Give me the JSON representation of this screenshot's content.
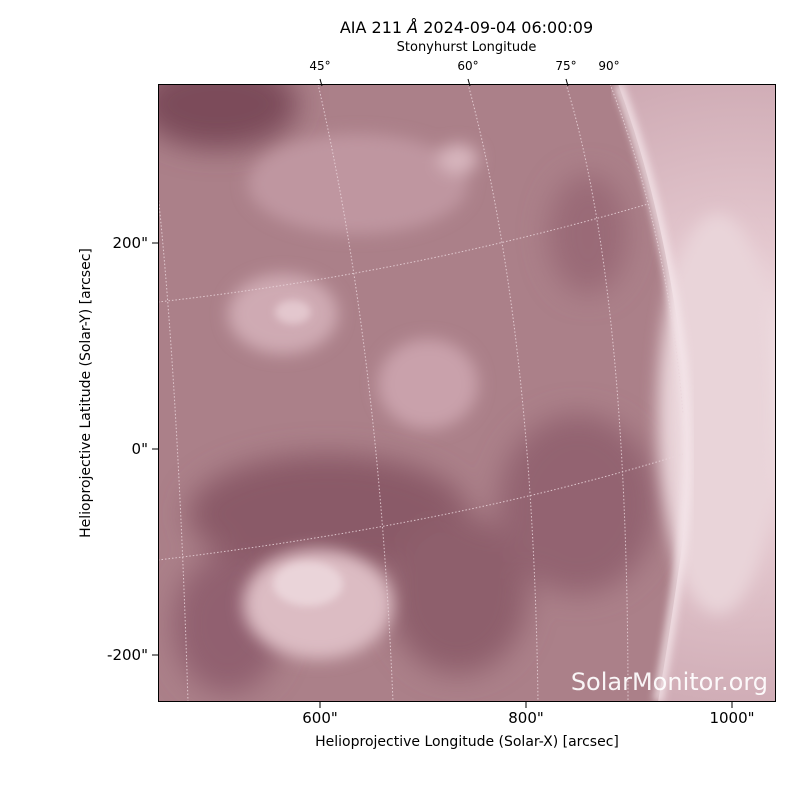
{
  "figure": {
    "title_prefix": "AIA 211 ",
    "title_angstrom": "Å",
    "title_date": " 2024-09-04 06:00:09",
    "top_axis_label": "Stonyhurst Longitude",
    "longitude_ticks": [
      "45°",
      "60°",
      "75°",
      "90°"
    ],
    "x_ticks": [
      "600\"",
      "800\"",
      "1000\""
    ],
    "y_ticks": [
      "200\"",
      "0\"",
      "-200\""
    ],
    "xlabel": "Helioprojective Longitude (Solar-X) [arcsec]",
    "ylabel": "Helioprojective Latitude (Solar-Y) [arcsec]",
    "watermark": "SolarMonitor.org"
  },
  "colors": {
    "disk_base": "#a97f89",
    "disk_dark": "#7a4a58",
    "disk_light": "#d9b7bf",
    "limb_bright": "#f5e6ea",
    "grid_line": "#e8d2d8"
  }
}
